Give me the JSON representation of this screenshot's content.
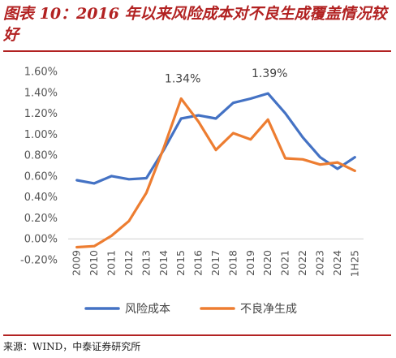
{
  "figure": {
    "title": "图表 10：2016 年以来风险成本对不良生成覆盖情况较好",
    "source": "来源：WIND，中泰证券研究所"
  },
  "chart_data": {
    "type": "line",
    "categories": [
      "2009",
      "2010",
      "2011",
      "2012",
      "2013",
      "2014",
      "2015",
      "2016",
      "2017",
      "2018",
      "2019",
      "2020",
      "2021",
      "2022",
      "2023",
      "2024",
      "1H25"
    ],
    "series": [
      {
        "name": "风险成本",
        "color": "#4472C4",
        "values": [
          0.56,
          0.53,
          0.6,
          0.57,
          0.58,
          0.85,
          1.15,
          1.18,
          1.15,
          1.3,
          1.34,
          1.39,
          1.2,
          0.97,
          0.78,
          0.67,
          0.78
        ]
      },
      {
        "name": "不良净生成",
        "color": "#ED7D31",
        "values": [
          -0.08,
          -0.07,
          0.03,
          0.17,
          0.44,
          0.87,
          1.34,
          1.12,
          0.85,
          1.01,
          0.95,
          1.14,
          0.77,
          0.76,
          0.71,
          0.73,
          0.65
        ]
      }
    ],
    "y_ticks": [
      "1.60%",
      "1.40%",
      "1.20%",
      "1.00%",
      "0.80%",
      "0.60%",
      "0.40%",
      "0.20%",
      "0.00%",
      "-0.20%"
    ],
    "ylim": [
      -0.2,
      1.6
    ],
    "annotations": [
      {
        "text": "1.34%",
        "category": "2015",
        "value": 1.34
      },
      {
        "text": "1.39%",
        "category": "2020",
        "value": 1.39
      }
    ],
    "legend": "bottom",
    "grid": false,
    "xlabel": "",
    "ylabel": ""
  }
}
